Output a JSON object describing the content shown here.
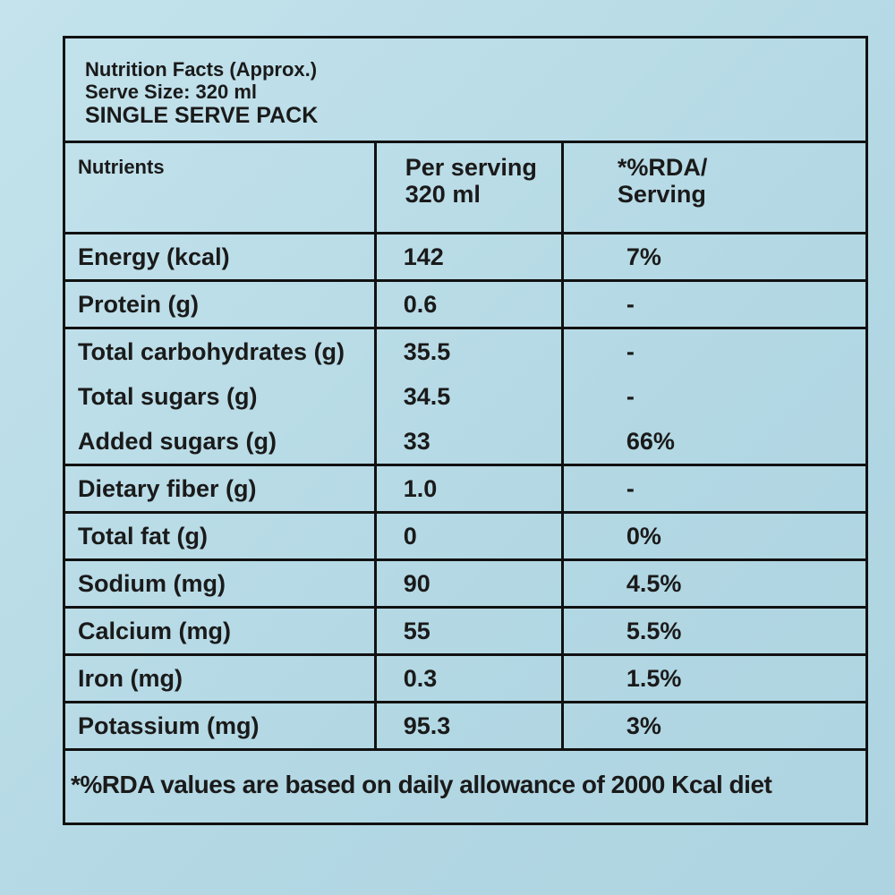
{
  "header": {
    "lines": [
      "Nutrition Facts (Approx.)",
      "Serve Size: 320 ml",
      "SINGLE SERVE PACK"
    ]
  },
  "table": {
    "columns": [
      [
        "Nutrients"
      ],
      [
        "Per serving",
        "320 ml"
      ],
      [
        "*%RDA/",
        "Serving"
      ]
    ],
    "rows": [
      [
        [
          "Energy (kcal)",
          "142",
          "7%"
        ]
      ],
      [
        [
          "Protein (g)",
          "0.6",
          "-"
        ]
      ],
      [
        [
          "Total carbohydrates (g)",
          "35.5",
          "-"
        ],
        [
          "Total sugars (g)",
          "34.5",
          "-"
        ],
        [
          "Added sugars (g)",
          "33",
          "66%"
        ]
      ],
      [
        [
          "Dietary fiber (g)",
          "1.0",
          "-"
        ]
      ],
      [
        [
          "Total fat (g)",
          "0",
          "0%"
        ]
      ],
      [
        [
          "Sodium (mg)",
          "90",
          "4.5%"
        ]
      ],
      [
        [
          "Calcium (mg)",
          "55",
          "5.5%"
        ]
      ],
      [
        [
          "Iron (mg)",
          "0.3",
          "1.5%"
        ]
      ],
      [
        [
          "Potassium (mg)",
          "95.3",
          "3%"
        ]
      ]
    ]
  },
  "footnote": "*%RDA values are based on daily allowance of 2000 Kcal diet"
}
